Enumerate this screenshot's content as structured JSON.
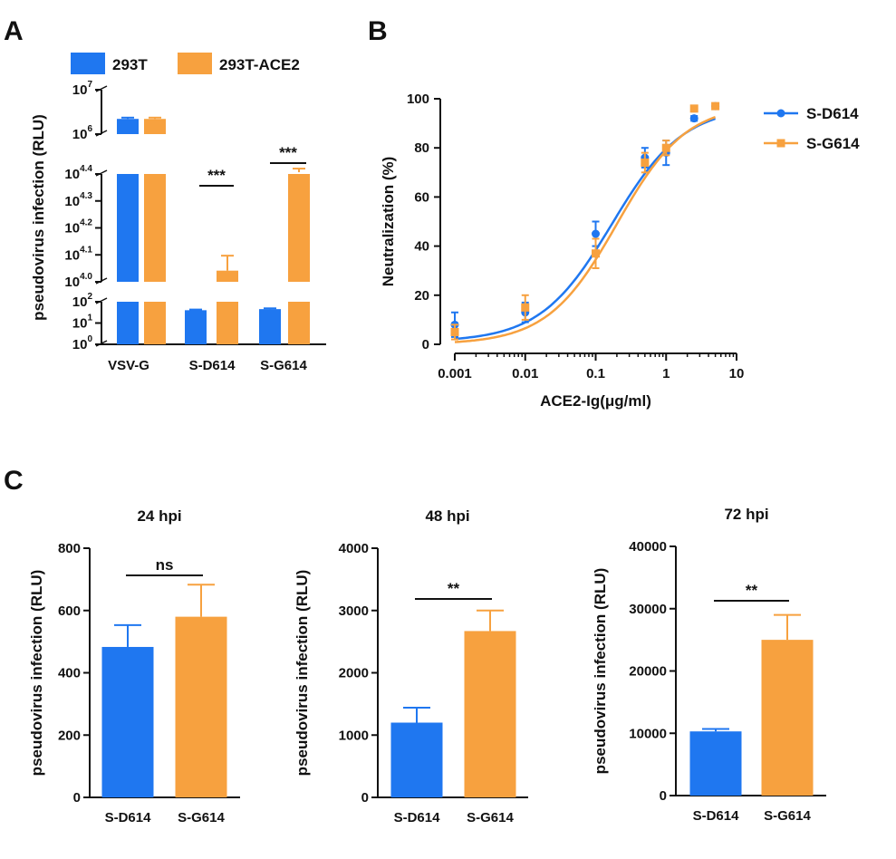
{
  "panel_labels": {
    "a": "A",
    "b": "B",
    "c": "C"
  },
  "colors": {
    "blue": "#1f77f0",
    "orange": "#f7a13f",
    "axis": "#111111"
  },
  "chart_data": [
    {
      "id": "A",
      "type": "bar",
      "scale": "log-broken",
      "ylabel": "pseudovirus infection (RLU)",
      "legend": {
        "position": "top",
        "entries": [
          "293T",
          "293T-ACE2"
        ]
      },
      "categories": [
        "VSV-G",
        "S-D614",
        "S-G614"
      ],
      "y_tick_labels": [
        {
          "base": "10",
          "exp": "0"
        },
        {
          "base": "10",
          "exp": "1"
        },
        {
          "base": "10",
          "exp": "2"
        },
        {
          "base": "10",
          "exp": "4.0"
        },
        {
          "base": "10",
          "exp": "4.1"
        },
        {
          "base": "10",
          "exp": "4.2"
        },
        {
          "base": "10",
          "exp": "4.3"
        },
        {
          "base": "10",
          "exp": "4.4"
        },
        {
          "base": "10",
          "exp": "6"
        },
        {
          "base": "10",
          "exp": "7"
        }
      ],
      "series": [
        {
          "name": "293T",
          "values": [
            2200000,
            40,
            45
          ],
          "errors": [
            150000,
            3,
            4
          ]
        },
        {
          "name": "293T-ACE2",
          "values": [
            2200000,
            11000,
            25500
          ],
          "errors": [
            150000,
            1500,
            800
          ]
        }
      ],
      "significance": [
        {
          "category": "S-D614",
          "label": "***"
        },
        {
          "category": "S-G614",
          "label": "***"
        }
      ]
    },
    {
      "id": "B",
      "type": "line",
      "xscale": "log",
      "xlabel": "ACE2-Ig(μg/ml)",
      "ylabel": "Neutralization (%)",
      "xlim": [
        0.001,
        10
      ],
      "ylim": [
        0,
        100
      ],
      "x_tick_labels": [
        "0.001",
        "0.01",
        "0.1",
        "1",
        "10"
      ],
      "y_tick_labels": [
        "0",
        "20",
        "40",
        "60",
        "80",
        "100"
      ],
      "legend": {
        "position": "right"
      },
      "series": [
        {
          "name": "S-D614",
          "x": [
            0.001,
            0.01,
            0.1,
            0.5,
            1,
            2.5,
            5
          ],
          "y": [
            8,
            13,
            45,
            76,
            78,
            92,
            97
          ],
          "errors": [
            5,
            4,
            5,
            4,
            5,
            1,
            1
          ],
          "fit": {
            "bottom": 1,
            "top": 97,
            "ec50": 0.17,
            "hill": 0.85
          }
        },
        {
          "name": "S-G614",
          "x": [
            0.001,
            0.01,
            0.1,
            0.5,
            1,
            2.5,
            5
          ],
          "y": [
            5,
            15,
            37,
            74,
            80,
            96,
            97
          ],
          "errors": [
            3,
            5,
            6,
            4,
            3,
            1,
            1
          ],
          "fit": {
            "bottom": 0,
            "top": 98,
            "ec50": 0.2,
            "hill": 0.88
          }
        }
      ]
    },
    {
      "id": "C1",
      "type": "bar",
      "title": "24 hpi",
      "ylabel": "pseudovirus infection (RLU)",
      "categories": [
        "S-D614",
        "S-G614"
      ],
      "values": [
        483,
        580
      ],
      "errors": [
        70,
        103
      ],
      "ylim": [
        0,
        800
      ],
      "y_tick_labels": [
        "0",
        "200",
        "400",
        "600",
        "800"
      ],
      "significance": "ns"
    },
    {
      "id": "C2",
      "type": "bar",
      "title": "48 hpi",
      "ylabel": "pseudovirus infection (RLU)",
      "categories": [
        "S-D614",
        "S-G614"
      ],
      "values": [
        1200,
        2670
      ],
      "errors": [
        240,
        330
      ],
      "ylim": [
        0,
        4000
      ],
      "y_tick_labels": [
        "0",
        "1000",
        "2000",
        "3000",
        "4000"
      ],
      "significance": "**"
    },
    {
      "id": "C3",
      "type": "bar",
      "title": "72 hpi",
      "ylabel": "pseudovirus infection (RLU)",
      "categories": [
        "S-D614",
        "S-G614"
      ],
      "values": [
        10300,
        25000
      ],
      "errors": [
        400,
        4000
      ],
      "ylim": [
        0,
        40000
      ],
      "y_tick_labels": [
        "0",
        "10000",
        "20000",
        "30000",
        "40000"
      ],
      "significance": "**"
    }
  ]
}
